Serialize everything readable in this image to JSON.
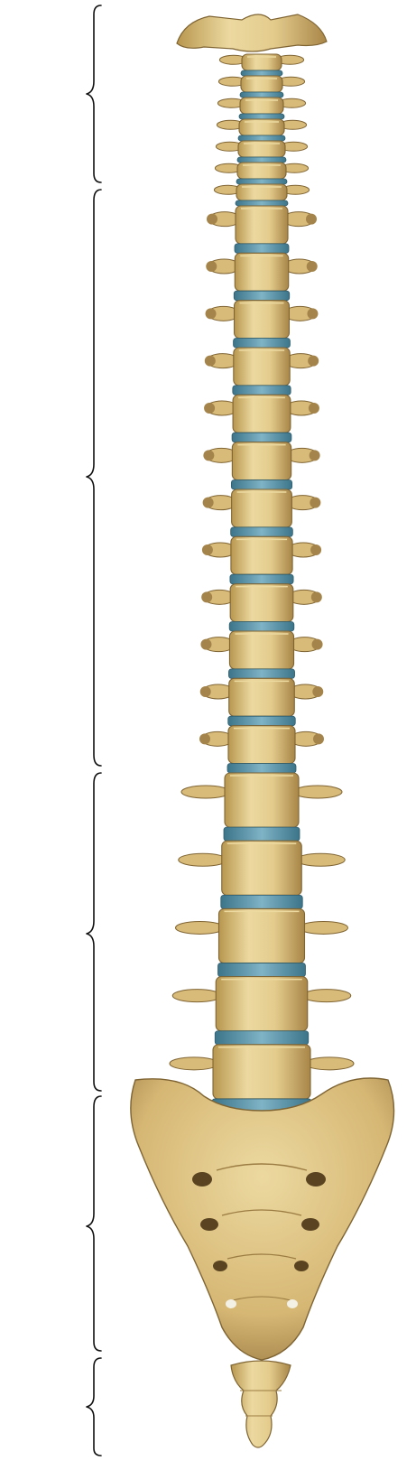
{
  "figure": {
    "regions": [
      {
        "id": "cervical",
        "vertebrae": 7,
        "disc_below": true
      },
      {
        "id": "thoracic",
        "vertebrae": 12,
        "disc_below": true
      },
      {
        "id": "lumbar",
        "vertebrae": 5,
        "disc_below": true
      },
      {
        "id": "sacrum",
        "fused": true
      },
      {
        "id": "coccyx",
        "fused": true
      }
    ]
  },
  "colors": {
    "background": "#ffffff",
    "bone_light": "#ecd9a0",
    "bone_mid": "#d8bb78",
    "bone_dark": "#a4844a",
    "bone_outline": "#7f6433",
    "disc": "#4f8fa7",
    "disc_light": "#7fb3c6",
    "brace": "#111111"
  }
}
